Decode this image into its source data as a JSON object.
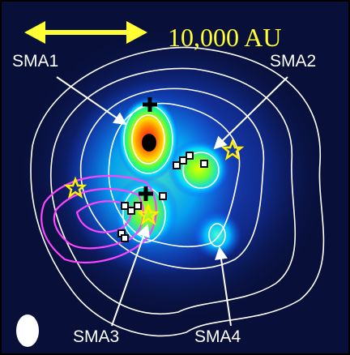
{
  "scale_bar": {
    "label": "10,000 AU"
  },
  "sources": [
    {
      "label": "SMA1"
    },
    {
      "label": "SMA2"
    },
    {
      "label": "SMA3"
    },
    {
      "label": "SMA4"
    }
  ]
}
